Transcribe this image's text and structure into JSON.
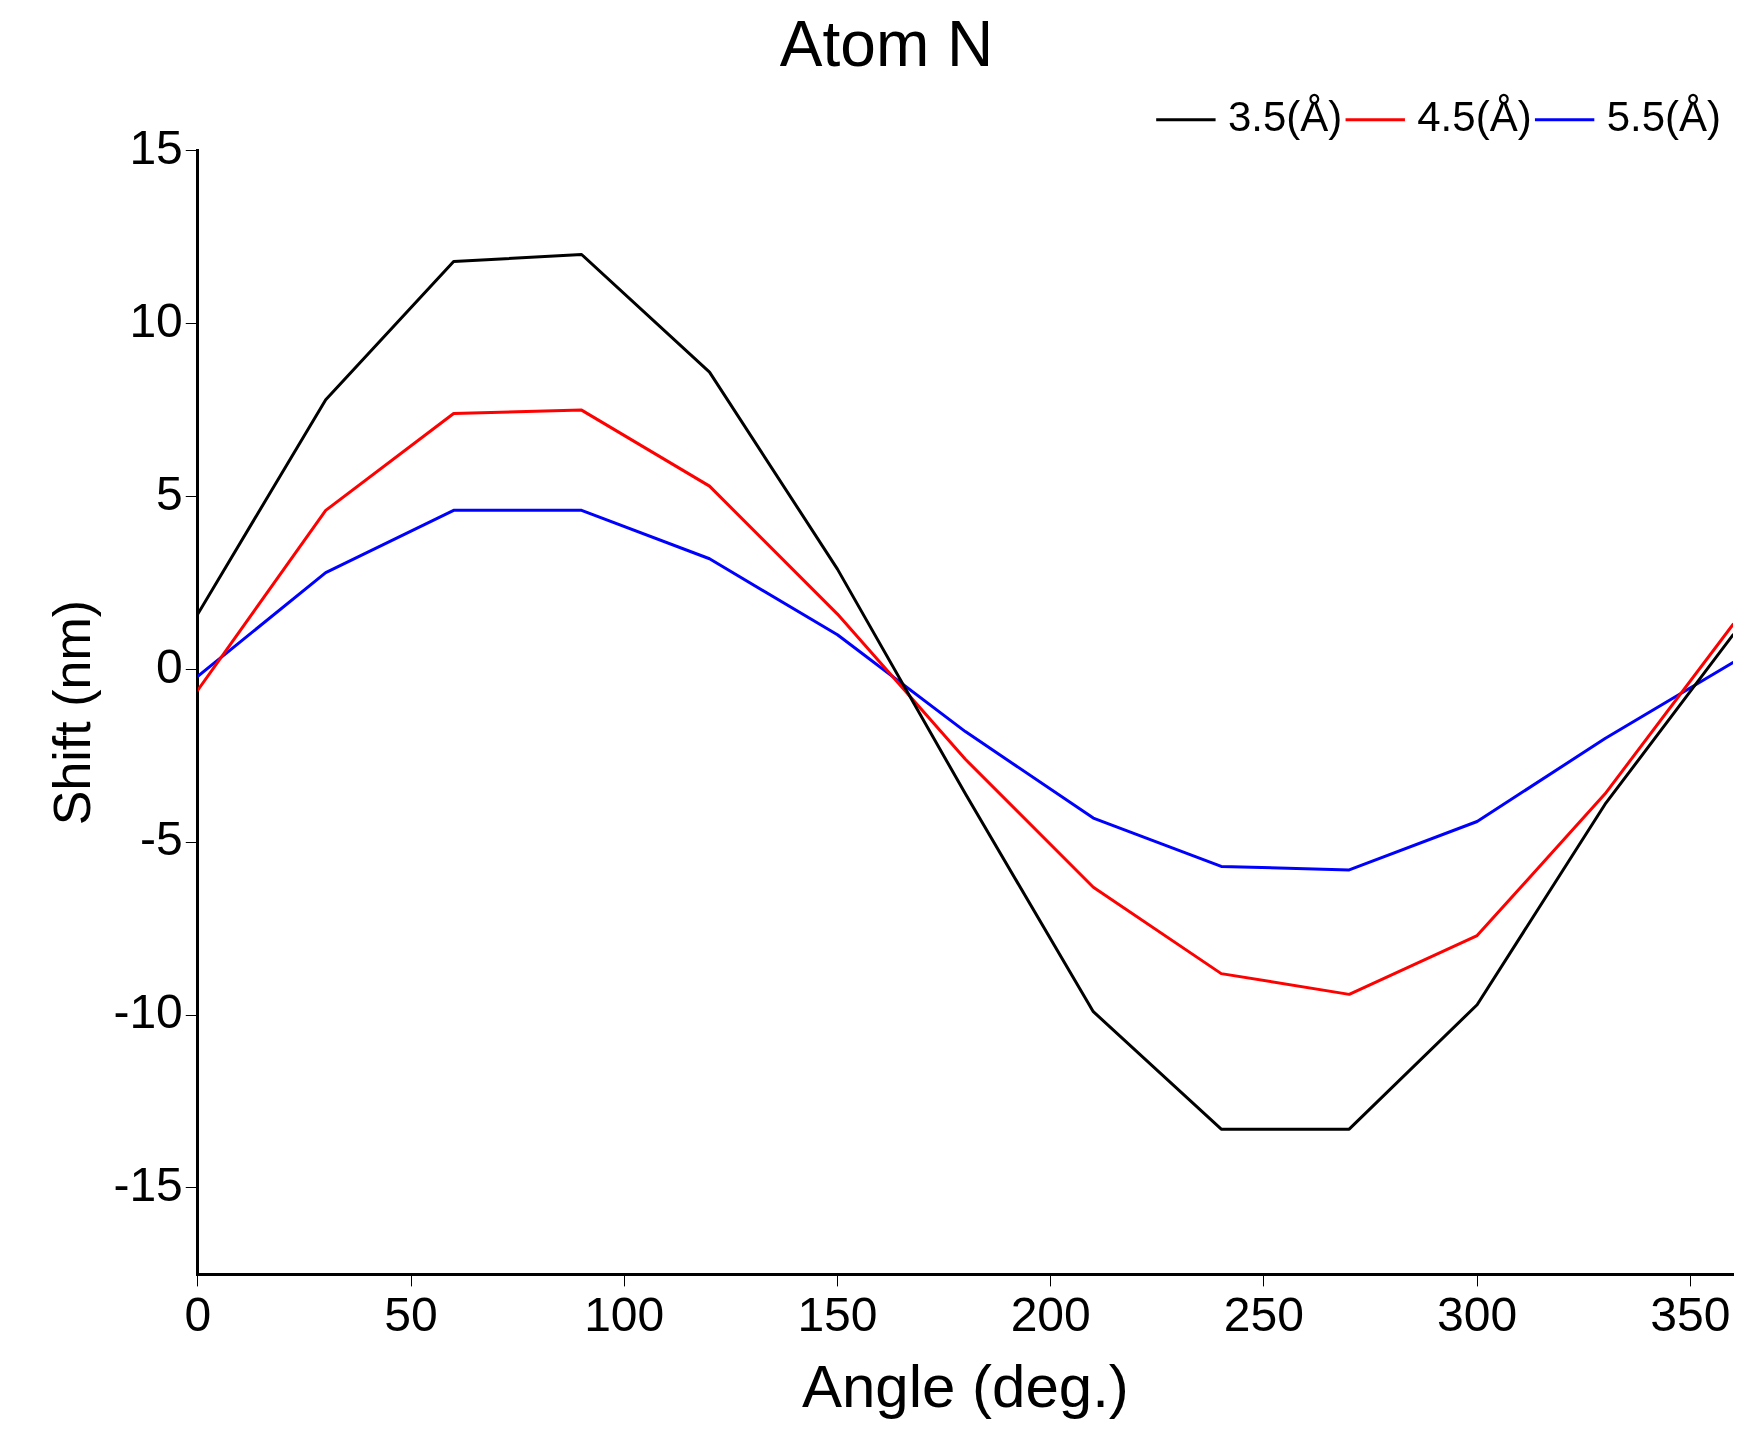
{
  "chart_data": {
    "type": "line",
    "title": "Atom N",
    "xlabel": "Angle (deg.)",
    "ylabel": "Shift (nm)",
    "x": [
      0,
      30,
      60,
      90,
      120,
      150,
      180,
      210,
      240,
      270,
      300,
      330,
      360
    ],
    "series": [
      {
        "name": "3.5(Å)",
        "color": "#000000",
        "values": [
          1.6,
          7.8,
          11.8,
          12.0,
          8.6,
          2.9,
          -3.6,
          -9.9,
          -13.3,
          -13.3,
          -9.7,
          -3.9,
          1.0
        ]
      },
      {
        "name": "4.5(Å)",
        "color": "#ff0000",
        "values": [
          -0.6,
          4.6,
          7.4,
          7.5,
          5.3,
          1.6,
          -2.6,
          -6.3,
          -8.8,
          -9.4,
          -7.7,
          -3.6,
          1.3
        ]
      },
      {
        "name": "5.5(Å)",
        "color": "#0000ff",
        "values": [
          -0.2,
          2.8,
          4.6,
          4.6,
          3.2,
          1.0,
          -1.8,
          -4.3,
          -5.7,
          -5.8,
          -4.4,
          -2.0,
          0.2
        ]
      }
    ],
    "xlim": [
      0,
      360
    ],
    "xticks": [
      0,
      50,
      100,
      150,
      200,
      250,
      300,
      350
    ],
    "ylim": [
      -17.5,
      15
    ],
    "yticks": [
      -15,
      -10,
      -5,
      0,
      5,
      10,
      15
    ],
    "grid": false,
    "legend": "top right",
    "marker": "none",
    "line_style": "solid"
  }
}
